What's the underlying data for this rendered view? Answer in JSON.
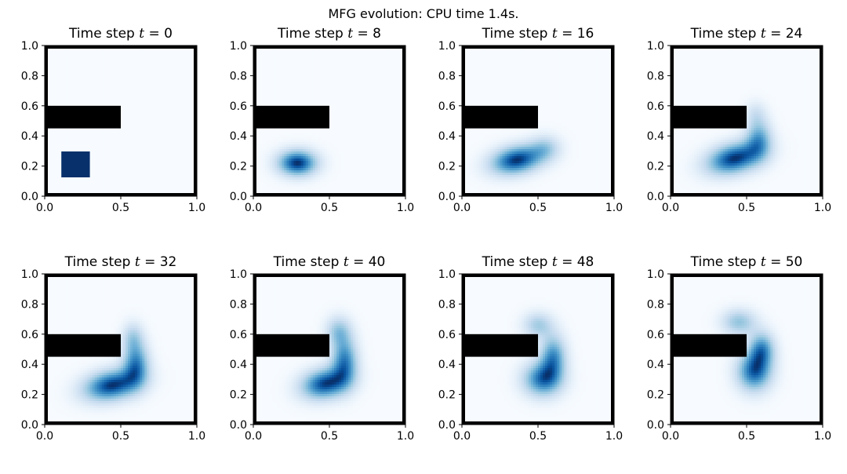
{
  "figure_title": "MFG evolution: CPU time 1.4s.",
  "chart_data": [
    {
      "type": "heatmap",
      "title_prefix": "Time step ",
      "title_var": "t",
      "title_value": "0",
      "xlim": [
        0,
        1
      ],
      "ylim": [
        0,
        1
      ],
      "xticks": [
        "0.0",
        "0.5",
        "1.0"
      ],
      "yticks": [
        "0.0",
        "0.2",
        "0.4",
        "0.6",
        "0.8",
        "1.0"
      ],
      "obstacle": {
        "x": [
          0.0,
          0.5
        ],
        "y": [
          0.45,
          0.6
        ]
      },
      "colormap": "Blues",
      "blobs": [
        {
          "shape": "square",
          "cx": 0.2,
          "cy": 0.21,
          "half": 0.09,
          "w": 1.0
        }
      ]
    },
    {
      "type": "heatmap",
      "title_prefix": "Time step ",
      "title_var": "t",
      "title_value": "8",
      "xlim": [
        0,
        1
      ],
      "ylim": [
        0,
        1
      ],
      "xticks": [
        "0.0",
        "0.5",
        "1.0"
      ],
      "yticks": [
        "0.0",
        "0.2",
        "0.4",
        "0.6",
        "0.8",
        "1.0"
      ],
      "obstacle": {
        "x": [
          0.0,
          0.5
        ],
        "y": [
          0.45,
          0.6
        ]
      },
      "colormap": "Blues",
      "blobs": [
        {
          "cx": 0.29,
          "cy": 0.22,
          "sx": 0.09,
          "sy": 0.06,
          "rot": 0,
          "w": 1.0
        }
      ]
    },
    {
      "type": "heatmap",
      "title_prefix": "Time step ",
      "title_var": "t",
      "title_value": "16",
      "xlim": [
        0,
        1
      ],
      "ylim": [
        0,
        1
      ],
      "xticks": [
        "0.0",
        "0.5",
        "1.0"
      ],
      "yticks": [
        "0.0",
        "0.2",
        "0.4",
        "0.6",
        "0.8",
        "1.0"
      ],
      "obstacle": {
        "x": [
          0.0,
          0.5
        ],
        "y": [
          0.45,
          0.6
        ]
      },
      "colormap": "Blues",
      "blobs": [
        {
          "cx": 0.36,
          "cy": 0.24,
          "sx": 0.12,
          "sy": 0.065,
          "rot": 0.2,
          "w": 1.0
        },
        {
          "cx": 0.55,
          "cy": 0.32,
          "sx": 0.07,
          "sy": 0.06,
          "rot": 0,
          "w": 0.35
        }
      ]
    },
    {
      "type": "heatmap",
      "title_prefix": "Time step ",
      "title_var": "t",
      "title_value": "24",
      "xlim": [
        0,
        1
      ],
      "ylim": [
        0,
        1
      ],
      "xticks": [
        "0.0",
        "0.5",
        "1.0"
      ],
      "yticks": [
        "0.0",
        "0.2",
        "0.4",
        "0.6",
        "0.8",
        "1.0"
      ],
      "obstacle": {
        "x": [
          0.0,
          0.5
        ],
        "y": [
          0.45,
          0.6
        ]
      },
      "colormap": "Blues",
      "blobs": [
        {
          "cx": 0.42,
          "cy": 0.25,
          "sx": 0.13,
          "sy": 0.07,
          "rot": 0.25,
          "w": 1.0
        },
        {
          "cx": 0.58,
          "cy": 0.38,
          "sx": 0.06,
          "sy": 0.09,
          "rot": 0,
          "w": 0.6
        },
        {
          "cx": 0.56,
          "cy": 0.55,
          "sx": 0.05,
          "sy": 0.06,
          "rot": 0,
          "w": 0.2
        }
      ]
    },
    {
      "type": "heatmap",
      "title_prefix": "Time step ",
      "title_var": "t",
      "title_value": "32",
      "xlim": [
        0,
        1
      ],
      "ylim": [
        0,
        1
      ],
      "xticks": [
        "0.0",
        "0.5",
        "1.0"
      ],
      "yticks": [
        "0.0",
        "0.2",
        "0.4",
        "0.6",
        "0.8",
        "1.0"
      ],
      "obstacle": {
        "x": [
          0.0,
          0.5
        ],
        "y": [
          0.45,
          0.6
        ]
      },
      "colormap": "Blues",
      "blobs": [
        {
          "cx": 0.44,
          "cy": 0.26,
          "sx": 0.13,
          "sy": 0.07,
          "rot": 0.2,
          "w": 1.0
        },
        {
          "cx": 0.6,
          "cy": 0.4,
          "sx": 0.06,
          "sy": 0.1,
          "rot": 0,
          "w": 0.75
        },
        {
          "cx": 0.58,
          "cy": 0.58,
          "sx": 0.05,
          "sy": 0.07,
          "rot": 0,
          "w": 0.35
        }
      ]
    },
    {
      "type": "heatmap",
      "title_prefix": "Time step ",
      "title_var": "t",
      "title_value": "40",
      "xlim": [
        0,
        1
      ],
      "ylim": [
        0,
        1
      ],
      "xticks": [
        "0.0",
        "0.5",
        "1.0"
      ],
      "yticks": [
        "0.0",
        "0.2",
        "0.4",
        "0.6",
        "0.8",
        "1.0"
      ],
      "obstacle": {
        "x": [
          0.0,
          0.5
        ],
        "y": [
          0.45,
          0.6
        ]
      },
      "colormap": "Blues",
      "blobs": [
        {
          "cx": 0.47,
          "cy": 0.27,
          "sx": 0.11,
          "sy": 0.07,
          "rot": 0.2,
          "w": 1.0
        },
        {
          "cx": 0.6,
          "cy": 0.42,
          "sx": 0.06,
          "sy": 0.11,
          "rot": 0,
          "w": 0.8
        },
        {
          "cx": 0.56,
          "cy": 0.62,
          "sx": 0.06,
          "sy": 0.07,
          "rot": 0,
          "w": 0.45
        }
      ]
    },
    {
      "type": "heatmap",
      "title_prefix": "Time step ",
      "title_var": "t",
      "title_value": "48",
      "xlim": [
        0,
        1
      ],
      "ylim": [
        0,
        1
      ],
      "xticks": [
        "0.0",
        "0.5",
        "1.0"
      ],
      "yticks": [
        "0.0",
        "0.2",
        "0.4",
        "0.6",
        "0.8",
        "1.0"
      ],
      "obstacle": {
        "x": [
          0.0,
          0.5
        ],
        "y": [
          0.45,
          0.6
        ]
      },
      "colormap": "Blues",
      "blobs": [
        {
          "cx": 0.53,
          "cy": 0.3,
          "sx": 0.09,
          "sy": 0.08,
          "rot": 0,
          "w": 1.0
        },
        {
          "cx": 0.6,
          "cy": 0.45,
          "sx": 0.06,
          "sy": 0.1,
          "rot": 0,
          "w": 0.85
        },
        {
          "cx": 0.5,
          "cy": 0.66,
          "sx": 0.07,
          "sy": 0.06,
          "rot": 0,
          "w": 0.5
        }
      ]
    },
    {
      "type": "heatmap",
      "title_prefix": "Time step ",
      "title_var": "t",
      "title_value": "50",
      "xlim": [
        0,
        1
      ],
      "ylim": [
        0,
        1
      ],
      "xticks": [
        "0.0",
        "0.5",
        "1.0"
      ],
      "yticks": [
        "0.0",
        "0.2",
        "0.4",
        "0.6",
        "0.8",
        "1.0"
      ],
      "obstacle": {
        "x": [
          0.0,
          0.5
        ],
        "y": [
          0.45,
          0.6
        ]
      },
      "colormap": "Blues",
      "blobs": [
        {
          "cx": 0.55,
          "cy": 0.35,
          "sx": 0.08,
          "sy": 0.09,
          "rot": 0,
          "w": 1.0
        },
        {
          "cx": 0.6,
          "cy": 0.5,
          "sx": 0.06,
          "sy": 0.08,
          "rot": 0,
          "w": 0.8
        },
        {
          "cx": 0.45,
          "cy": 0.68,
          "sx": 0.08,
          "sy": 0.06,
          "rot": 0,
          "w": 0.55
        }
      ]
    }
  ]
}
